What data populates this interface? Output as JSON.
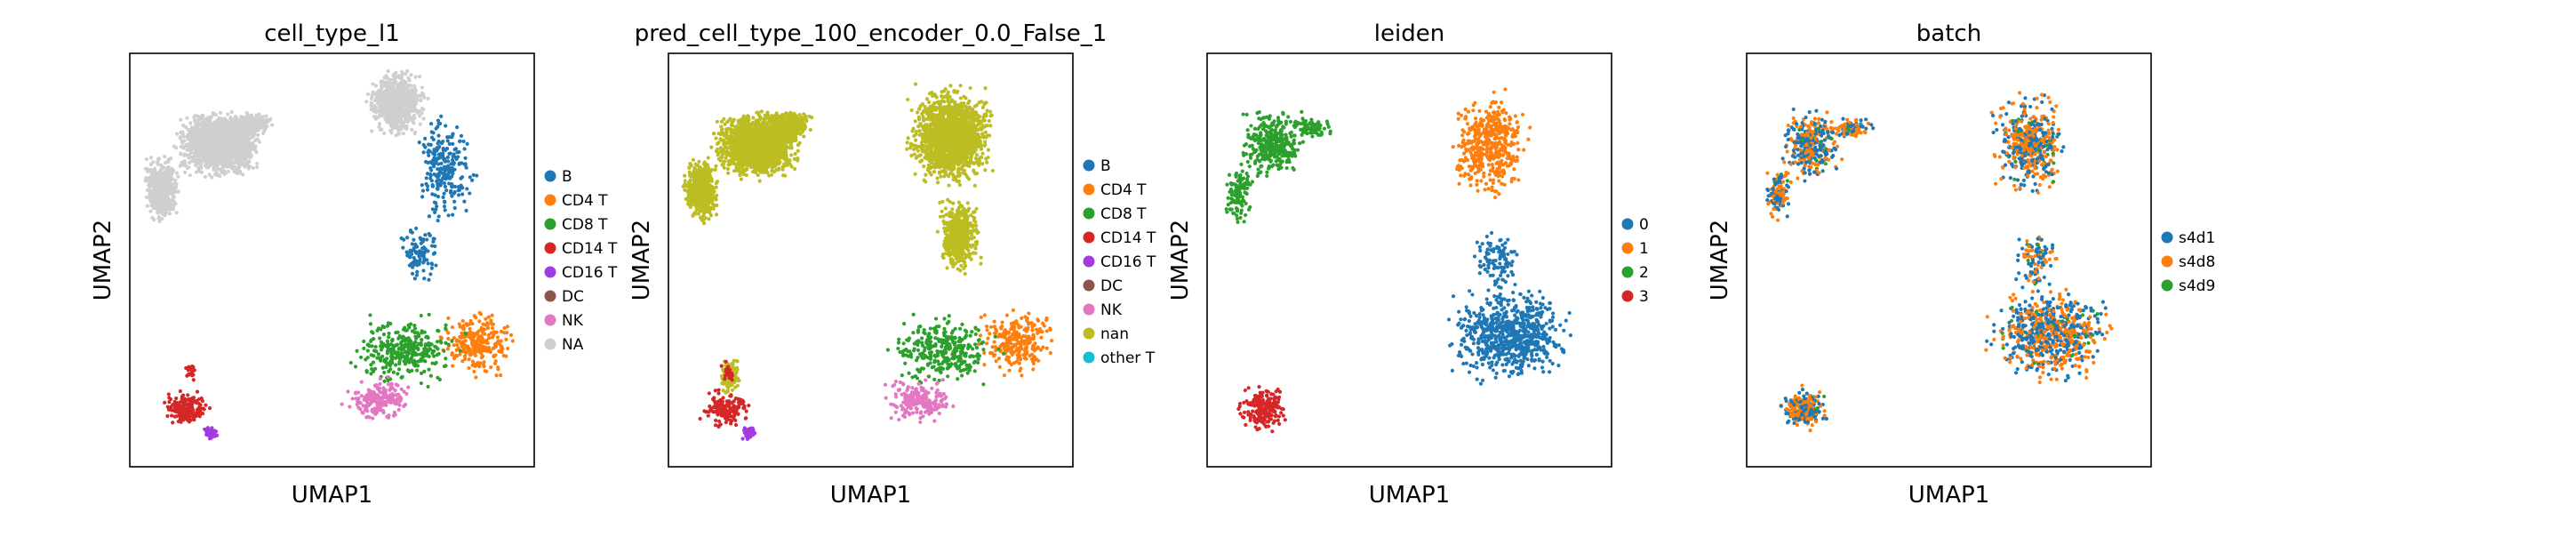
{
  "chart_data": [
    {
      "type": "scatter",
      "title": "cell_type_l1",
      "xlabel": "UMAP1",
      "ylabel": "UMAP2",
      "grid": false,
      "legend_placement": "right",
      "legend": [
        {
          "label": "B",
          "color": "#1f77b4"
        },
        {
          "label": "CD4 T",
          "color": "#ff7f0e"
        },
        {
          "label": "CD8 T",
          "color": "#2ca02c"
        },
        {
          "label": "CD14 T",
          "color": "#d62728"
        },
        {
          "label": "CD16 T",
          "color": "#a23be0"
        },
        {
          "label": "DC",
          "color": "#8c564b"
        },
        {
          "label": "NK",
          "color": "#e377c2"
        },
        {
          "label": "NA",
          "color": "#cfcfcf"
        }
      ],
      "regions": [
        "na",
        "na",
        "na",
        "na",
        "b",
        "cd4",
        "cd8",
        "nk",
        "cd14",
        "cd16"
      ]
    },
    {
      "type": "scatter",
      "title": "pred_cell_type_100_encoder_0.0_False_1",
      "xlabel": "UMAP1",
      "ylabel": "UMAP2",
      "grid": false,
      "legend_placement": "right",
      "legend": [
        {
          "label": "B",
          "color": "#1f77b4"
        },
        {
          "label": "CD4 T",
          "color": "#ff7f0e"
        },
        {
          "label": "CD8 T",
          "color": "#2ca02c"
        },
        {
          "label": "CD14 T",
          "color": "#d62728"
        },
        {
          "label": "CD16 T",
          "color": "#a23be0"
        },
        {
          "label": "DC",
          "color": "#8c564b"
        },
        {
          "label": "NK",
          "color": "#e377c2"
        },
        {
          "label": "nan",
          "color": "#bcbd22"
        },
        {
          "label": "other T",
          "color": "#17becf"
        }
      ],
      "regions": [
        "nan",
        "nan",
        "nan",
        "nan",
        "cd4",
        "cd8",
        "nk",
        "cd14",
        "cd16"
      ]
    },
    {
      "type": "scatter",
      "title": "leiden",
      "xlabel": "UMAP1",
      "ylabel": "UMAP2",
      "grid": false,
      "legend_placement": "right",
      "legend": [
        {
          "label": "0",
          "color": "#1f77b4"
        },
        {
          "label": "1",
          "color": "#ff7f0e"
        },
        {
          "label": "2",
          "color": "#2ca02c"
        },
        {
          "label": "3",
          "color": "#d62728"
        }
      ],
      "regions": [
        "2",
        "1",
        "0",
        "3"
      ]
    },
    {
      "type": "scatter",
      "title": "batch",
      "xlabel": "UMAP1",
      "ylabel": "UMAP2",
      "grid": false,
      "legend_placement": "right",
      "legend": [
        {
          "label": "s4d1",
          "color": "#1f77b4"
        },
        {
          "label": "s4d8",
          "color": "#ff7f0e"
        },
        {
          "label": "s4d9",
          "color": "#2ca02c"
        }
      ],
      "regions": [
        "mixed"
      ]
    }
  ]
}
